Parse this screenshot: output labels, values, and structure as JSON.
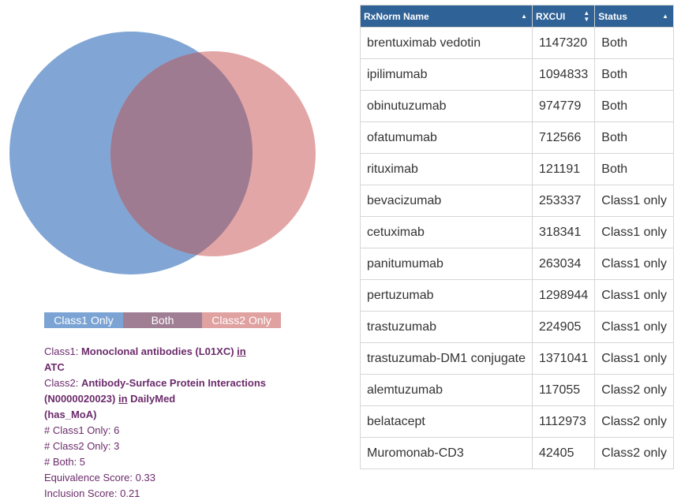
{
  "venn": {
    "colors": {
      "class1": "#6f9acf",
      "class2": "#e09c9c",
      "overlap": "#9e7b91"
    }
  },
  "legend": {
    "class1_label": "Class1 Only",
    "both_label": "Both",
    "class2_label": "Class2 Only"
  },
  "info": {
    "class1_prefix": "Class1: ",
    "class1_name": "Monoclonal antibodies (L01XC)",
    "class1_in": "in",
    "class1_source": "ATC",
    "class2_prefix": "Class2: ",
    "class2_name": "Antibody-Surface Protein Interactions (N0000020023)",
    "class2_in": "in",
    "class2_source": "DailyMed",
    "class2_relation": "(has_MoA)",
    "class1_only": "# Class1 Only: 6",
    "class2_only": "# Class2 Only: 3",
    "both": "# Both: 5",
    "equivalence": "Equivalence Score: 0.33",
    "inclusion": "Inclusion Score: 0.21"
  },
  "table": {
    "headers": [
      "RxNorm Name",
      "RXCUI",
      "Status"
    ],
    "rows": [
      [
        "brentuximab vedotin",
        "1147320",
        "Both"
      ],
      [
        "ipilimumab",
        "1094833",
        "Both"
      ],
      [
        "obinutuzumab",
        "974779",
        "Both"
      ],
      [
        "ofatumumab",
        "712566",
        "Both"
      ],
      [
        "rituximab",
        "121191",
        "Both"
      ],
      [
        "bevacizumab",
        "253337",
        "Class1 only"
      ],
      [
        "cetuximab",
        "318341",
        "Class1 only"
      ],
      [
        "panitumumab",
        "263034",
        "Class1 only"
      ],
      [
        "pertuzumab",
        "1298944",
        "Class1 only"
      ],
      [
        "trastuzumab",
        "224905",
        "Class1 only"
      ],
      [
        "trastuzumab-DM1 conjugate",
        "1371041",
        "Class1 only"
      ],
      [
        "alemtuzumab",
        "117055",
        "Class2 only"
      ],
      [
        "belatacept",
        "1112973",
        "Class2 only"
      ],
      [
        "Muromonab-CD3",
        "42405",
        "Class2 only"
      ]
    ]
  }
}
